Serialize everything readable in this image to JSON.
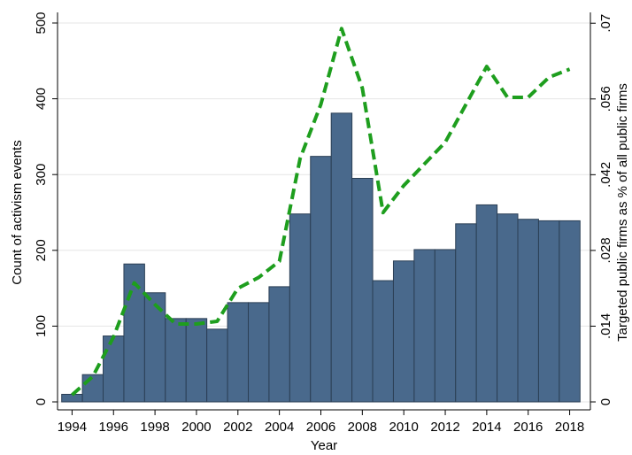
{
  "chart_data": {
    "type": "bar",
    "x_label": "Year",
    "y_label": "Count of activism events",
    "y2_label": "Targeted public firms as % of all public firms",
    "x": [
      1994,
      1995,
      1996,
      1997,
      1998,
      1999,
      2000,
      2001,
      2002,
      2003,
      2004,
      2005,
      2006,
      2007,
      2008,
      2009,
      2010,
      2011,
      2012,
      2013,
      2014,
      2015,
      2016,
      2017,
      2018
    ],
    "series": [
      {
        "type": "bar",
        "color": "#49698c",
        "values": [
          10,
          36,
          87,
          182,
          144,
          110,
          110,
          96,
          131,
          131,
          152,
          248,
          324,
          381,
          295,
          160,
          186,
          201,
          201,
          235,
          260,
          248,
          241,
          239,
          239
        ]
      },
      {
        "type": "line",
        "axis": "y2",
        "color": "#1e9e1e",
        "values": [
          0.0013,
          0.0047,
          0.012,
          0.022,
          0.018,
          0.0144,
          0.0144,
          0.0149,
          0.021,
          0.023,
          0.026,
          0.045,
          0.055,
          0.069,
          0.058,
          0.035,
          0.04,
          0.044,
          0.048,
          0.055,
          0.062,
          0.0563,
          0.0563,
          0.06,
          0.0615
        ]
      }
    ],
    "xlim": [
      1993.3,
      2019.0
    ],
    "xticks": [
      1994,
      1996,
      1998,
      2000,
      2002,
      2004,
      2006,
      2008,
      2010,
      2012,
      2014,
      2016,
      2018
    ],
    "ylim": [
      -10.5,
      514
    ],
    "yticks": [
      0,
      100,
      200,
      300,
      400,
      500
    ],
    "y2lim": [
      -0.00147,
      0.072
    ],
    "y2ticks": [
      0,
      {
        "value": 0.014,
        "label": ".014"
      },
      {
        "value": 0.028,
        "label": ".028"
      },
      {
        "value": 0.042,
        "label": ".042"
      },
      {
        "value": 0.056,
        "label": ".056"
      },
      {
        "value": 0.07,
        "label": ".07"
      }
    ],
    "grid": true
  }
}
